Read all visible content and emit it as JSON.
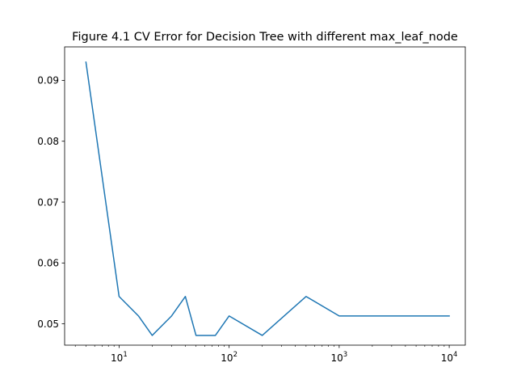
{
  "chart_data": {
    "type": "line",
    "title": "Figure 4.1 CV Error for Decision Tree with different max_leaf_node",
    "xlabel": "",
    "ylabel": "",
    "xscale": "log",
    "xlim": [
      3.2,
      14000
    ],
    "ylim": [
      0.0465,
      0.0955
    ],
    "x_ticks": [
      {
        "base": "10",
        "exp": "1",
        "value": 10
      },
      {
        "base": "10",
        "exp": "2",
        "value": 100
      },
      {
        "base": "10",
        "exp": "3",
        "value": 1000
      },
      {
        "base": "10",
        "exp": "4",
        "value": 10000
      }
    ],
    "y_ticks": [
      {
        "label": "0.05",
        "value": 0.05
      },
      {
        "label": "0.06",
        "value": 0.06
      },
      {
        "label": "0.07",
        "value": 0.07
      },
      {
        "label": "0.08",
        "value": 0.08
      },
      {
        "label": "0.09",
        "value": 0.09
      }
    ],
    "grid": false,
    "legend": "none",
    "series": [
      {
        "color": "#1f77b4",
        "x": [
          5,
          10,
          15,
          20,
          30,
          40,
          50,
          75,
          100,
          200,
          500,
          1000,
          2000,
          5000,
          10000
        ],
        "y": [
          0.093,
          0.0545,
          0.0513,
          0.0481,
          0.0513,
          0.0545,
          0.0481,
          0.0481,
          0.0513,
          0.0481,
          0.0545,
          0.0513,
          0.0513,
          0.0513,
          0.0513
        ]
      }
    ]
  }
}
